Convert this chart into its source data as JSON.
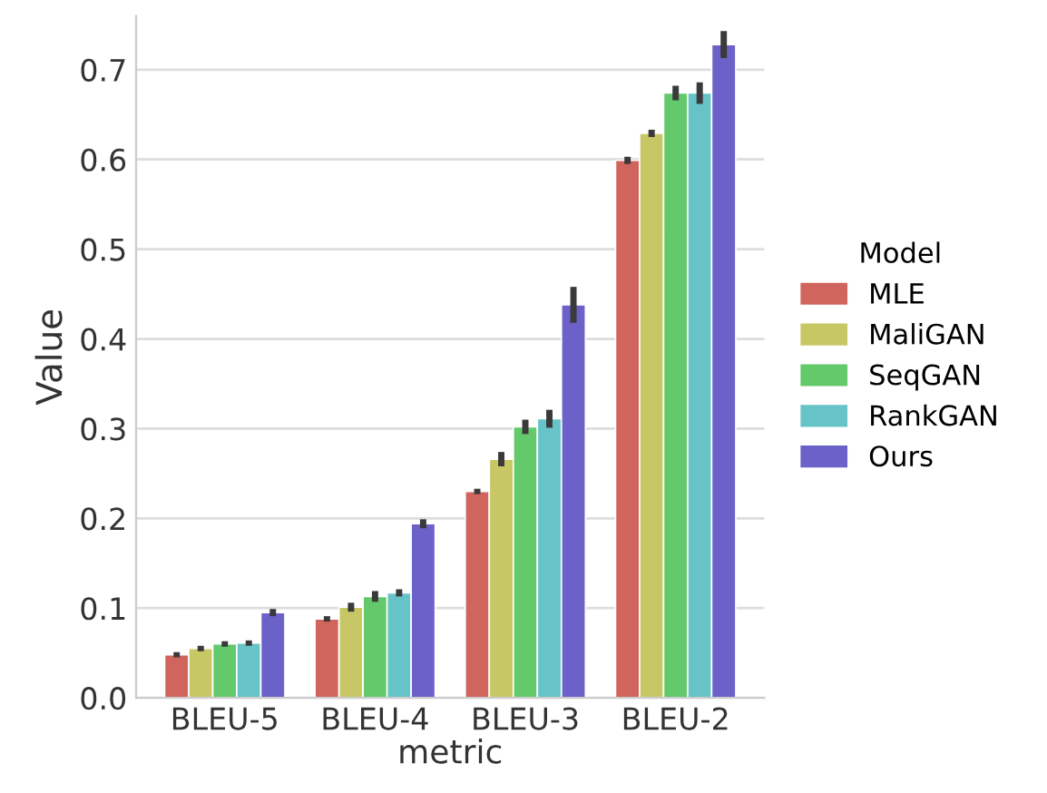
{
  "chart_data": {
    "type": "bar",
    "xlabel": "metric",
    "ylabel": "Value",
    "legend_title": "Model",
    "categories": [
      "BLEU-5",
      "BLEU-4",
      "BLEU-3",
      "BLEU-2"
    ],
    "series": [
      {
        "name": "MLE",
        "color": "#d0655d",
        "values": [
          0.048,
          0.088,
          0.23,
          0.599
        ],
        "errors": [
          0.003,
          0.003,
          0.003,
          0.004
        ]
      },
      {
        "name": "MaliGAN",
        "color": "#c7c865",
        "values": [
          0.055,
          0.101,
          0.266,
          0.629
        ],
        "errors": [
          0.003,
          0.005,
          0.008,
          0.004
        ]
      },
      {
        "name": "SeqGAN",
        "color": "#63c96a",
        "values": [
          0.06,
          0.113,
          0.302,
          0.674
        ],
        "errors": [
          0.003,
          0.006,
          0.008,
          0.008
        ]
      },
      {
        "name": "RankGAN",
        "color": "#66c4c8",
        "values": [
          0.061,
          0.117,
          0.311,
          0.674
        ],
        "errors": [
          0.003,
          0.004,
          0.01,
          0.012
        ]
      },
      {
        "name": "Ours",
        "color": "#6c61c9",
        "values": [
          0.095,
          0.194,
          0.438,
          0.728
        ],
        "errors": [
          0.004,
          0.005,
          0.02,
          0.015
        ]
      }
    ],
    "ylim": [
      0,
      0.76
    ],
    "yticks": [
      {
        "value": 0,
        "label": "0.0"
      },
      0.1,
      0.2,
      0.3,
      0.4,
      0.5,
      0.6,
      0.7
    ],
    "grid": "y",
    "legend": "right"
  }
}
